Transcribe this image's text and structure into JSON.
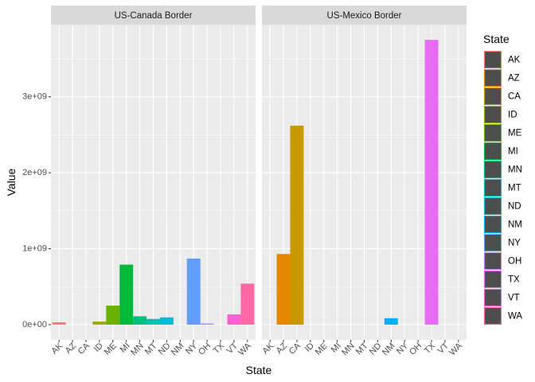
{
  "chart_data": {
    "type": "bar",
    "xlabel": "State",
    "ylabel": "Value",
    "ylim": [
      -200000000,
      3950000000
    ],
    "y_ticks": [
      0,
      1000000000,
      2000000000,
      3000000000
    ],
    "y_tick_labels": [
      "0e+00",
      "1e+09",
      "2e+09",
      "3e+09"
    ],
    "categories": [
      "AK",
      "AZ",
      "CA",
      "ID",
      "ME",
      "MI",
      "MN",
      "MT",
      "ND",
      "NM",
      "NY",
      "OH",
      "TX",
      "VT",
      "WA"
    ],
    "facets": [
      {
        "name": "US-Canada Border",
        "values": [
          30000000,
          0,
          0,
          40000000,
          250000000,
          790000000,
          110000000,
          75000000,
          95000000,
          0,
          870000000,
          15000000,
          0,
          135000000,
          540000000
        ]
      },
      {
        "name": "US-Mexico Border",
        "values": [
          0,
          930000000,
          2620000000,
          0,
          0,
          0,
          0,
          0,
          0,
          85000000,
          0,
          0,
          3750000000,
          0,
          0
        ]
      }
    ],
    "legend": {
      "title": "State",
      "position": "right",
      "items": [
        "AK",
        "AZ",
        "CA",
        "ID",
        "ME",
        "MI",
        "MN",
        "MT",
        "ND",
        "NM",
        "NY",
        "OH",
        "TX",
        "VT",
        "WA"
      ],
      "colors": [
        "#F8766D",
        "#E58700",
        "#C99800",
        "#A3A500",
        "#6BB100",
        "#00BA38",
        "#00BF7D",
        "#00C0AF",
        "#00BCD8",
        "#00B0F6",
        "#619CFF",
        "#B983FF",
        "#E76BF3",
        "#FD61D1",
        "#FF67A4"
      ]
    },
    "grid": true,
    "theme": {
      "panel_bg": "#EBEBEB",
      "strip_bg": "#D9D9D9",
      "grid_color": "#FFFFFF",
      "legend_key_fill": "#4D4D4D"
    }
  }
}
